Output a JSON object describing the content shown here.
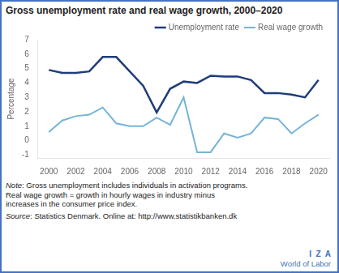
{
  "chart_data": {
    "type": "line",
    "title": "Gross unemployment rate and real wage growth, 2000–2020",
    "y_label": "Percentage",
    "x": [
      2000,
      2001,
      2002,
      2003,
      2004,
      2005,
      2006,
      2007,
      2008,
      2009,
      2010,
      2011,
      2012,
      2013,
      2014,
      2015,
      2016,
      2017,
      2018,
      2019,
      2020
    ],
    "series": [
      {
        "name": "Unemployment rate",
        "color": "#1f3d7a",
        "values": [
          4.9,
          4.7,
          4.7,
          4.8,
          5.8,
          5.8,
          4.8,
          3.8,
          1.95,
          3.6,
          4.1,
          4.0,
          4.5,
          4.45,
          4.45,
          4.2,
          3.3,
          3.3,
          3.2,
          3.0,
          4.2
        ]
      },
      {
        "name": "Real wage growth",
        "color": "#74b4d8",
        "values": [
          0.6,
          1.4,
          1.7,
          1.8,
          2.3,
          1.2,
          1.0,
          1.0,
          1.6,
          1.1,
          3.0,
          -0.8,
          -0.8,
          0.5,
          0.2,
          0.5,
          1.6,
          1.5,
          0.5,
          1.2,
          1.8
        ]
      }
    ],
    "xlim": [
      1999.2,
      2020.8
    ],
    "xticks": [
      2000,
      2002,
      2004,
      2006,
      2008,
      2010,
      2012,
      2014,
      2016,
      2018,
      2020
    ],
    "ylim": [
      -1.2,
      7
    ],
    "yticks": [
      -1,
      0,
      1,
      2,
      3,
      4,
      5,
      6,
      7
    ],
    "grid": false,
    "legend": "upper right",
    "annotations": [
      "Note: Gross unemployment includes individuals in activation programs.\nReal wage growth = growth in hourly wages in industry minus\nincreases in the consumer price index.",
      "Source: Statistics Denmark. Online at: http://www.statistikbanken.dk",
      "I  Z  A",
      "World of Labor"
    ]
  }
}
